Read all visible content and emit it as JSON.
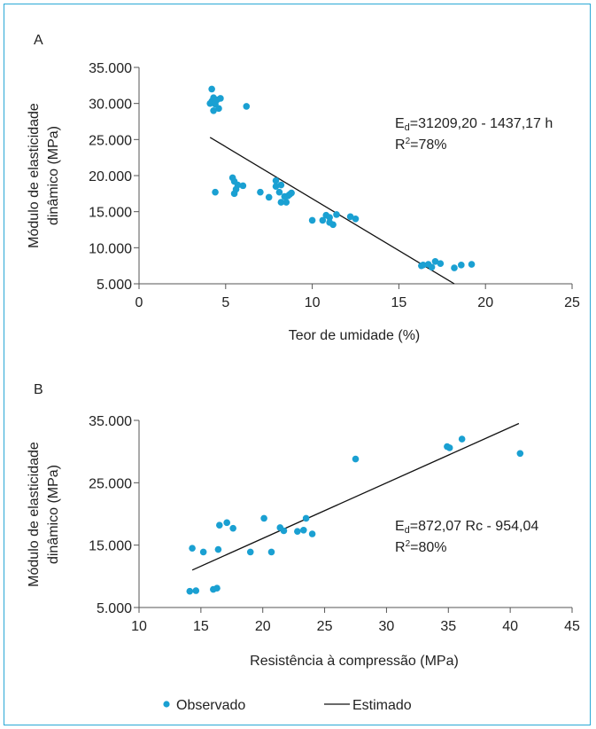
{
  "chart_data": [
    {
      "panel_label": "A",
      "type": "scatter",
      "xlabel": "Teor de umidade (%)",
      "ylabel_lines": [
        "Módulo de elasticidade",
        "dinâmico (MPa)"
      ],
      "xlim": [
        0,
        25
      ],
      "ylim": [
        5000,
        35000
      ],
      "xticks": [
        0,
        5,
        10,
        15,
        20,
        25
      ],
      "xtick_labels": [
        "0",
        "5",
        "10",
        "15",
        "20",
        "25"
      ],
      "yticks": [
        5000,
        10000,
        15000,
        20000,
        25000,
        30000,
        35000
      ],
      "ytick_labels": [
        "5.000",
        "10.000",
        "15.000",
        "20.000",
        "25.000",
        "30.000",
        "35.000"
      ],
      "equation": {
        "prefix": "E",
        "sub": "d",
        "rest": "=31209,20 - 1437,17 h"
      },
      "r2": {
        "prefix": "R",
        "sup": "2",
        "rest": "=78%"
      },
      "fit_line": {
        "x": [
          4.1,
          18.2
        ],
        "y": [
          25300,
          5000
        ]
      },
      "series": [
        {
          "name": "Observado",
          "points": [
            [
              4.2,
              32000
            ],
            [
              4.1,
              30000
            ],
            [
              4.3,
              30800
            ],
            [
              4.2,
              30300
            ],
            [
              4.5,
              30500
            ],
            [
              4.7,
              30700
            ],
            [
              4.4,
              29900
            ],
            [
              4.3,
              29000
            ],
            [
              4.6,
              29300
            ],
            [
              6.2,
              29600
            ],
            [
              4.4,
              17700
            ],
            [
              5.4,
              19700
            ],
            [
              5.5,
              19200
            ],
            [
              5.7,
              18700
            ],
            [
              6.0,
              18600
            ],
            [
              5.6,
              18100
            ],
            [
              5.5,
              17500
            ],
            [
              7.0,
              17700
            ],
            [
              7.5,
              17000
            ],
            [
              7.9,
              19300
            ],
            [
              7.9,
              18500
            ],
            [
              8.2,
              18700
            ],
            [
              8.1,
              17700
            ],
            [
              8.4,
              17100
            ],
            [
              8.7,
              17400
            ],
            [
              8.8,
              17600
            ],
            [
              8.6,
              17200
            ],
            [
              8.2,
              16300
            ],
            [
              8.5,
              16300
            ],
            [
              10.0,
              13800
            ],
            [
              10.6,
              13800
            ],
            [
              10.8,
              14500
            ],
            [
              11.0,
              14200
            ],
            [
              11.0,
              13500
            ],
            [
              11.2,
              13200
            ],
            [
              11.4,
              14600
            ],
            [
              12.2,
              14300
            ],
            [
              12.5,
              14000
            ],
            [
              16.3,
              7500
            ],
            [
              16.4,
              7600
            ],
            [
              16.7,
              7700
            ],
            [
              16.9,
              7300
            ],
            [
              17.1,
              8100
            ],
            [
              17.4,
              7800
            ],
            [
              18.2,
              7200
            ],
            [
              18.6,
              7600
            ],
            [
              19.2,
              7700
            ]
          ]
        }
      ]
    },
    {
      "panel_label": "B",
      "type": "scatter",
      "xlabel": "Resistência à compressão (MPa)",
      "ylabel_lines": [
        "Módulo de elasticidade",
        "dinâmico (MPa)"
      ],
      "xlim": [
        10,
        45
      ],
      "ylim": [
        5000,
        35000
      ],
      "xticks": [
        10,
        15,
        20,
        25,
        30,
        35,
        40,
        45
      ],
      "xtick_labels": [
        "10",
        "15",
        "20",
        "25",
        "30",
        "35",
        "40",
        "45"
      ],
      "yticks": [
        5000,
        15000,
        25000,
        35000
      ],
      "ytick_labels": [
        "5.000",
        "15.000",
        "25.000",
        "35.000"
      ],
      "equation": {
        "prefix": "E",
        "sub": "d",
        "rest": "=872,07 Rc - 954,04"
      },
      "r2": {
        "prefix": "R",
        "sup": "2",
        "rest": "=80%"
      },
      "fit_line": {
        "x": [
          14.3,
          40.7
        ],
        "y": [
          11000,
          34500
        ]
      },
      "series": [
        {
          "name": "Observado",
          "points": [
            [
              14.1,
              7600
            ],
            [
              14.6,
              7700
            ],
            [
              16.0,
              7900
            ],
            [
              16.3,
              8100
            ],
            [
              14.3,
              14500
            ],
            [
              15.2,
              13900
            ],
            [
              16.4,
              14300
            ],
            [
              16.5,
              18200
            ],
            [
              17.1,
              18600
            ],
            [
              17.6,
              17700
            ],
            [
              19.0,
              13900
            ],
            [
              20.1,
              19300
            ],
            [
              20.7,
              13900
            ],
            [
              21.4,
              17800
            ],
            [
              21.7,
              17300
            ],
            [
              22.8,
              17200
            ],
            [
              23.3,
              17400
            ],
            [
              23.5,
              19300
            ],
            [
              24.0,
              16800
            ],
            [
              27.5,
              28800
            ],
            [
              34.9,
              30800
            ],
            [
              35.1,
              30600
            ],
            [
              36.1,
              32000
            ],
            [
              40.8,
              29700
            ]
          ]
        }
      ]
    }
  ],
  "legend": {
    "observed_label": "Observado",
    "estimated_label": "Estimado"
  },
  "colors": {
    "points": "#1aa0d2",
    "line": "#111111",
    "frame": "#2aa8d6"
  }
}
